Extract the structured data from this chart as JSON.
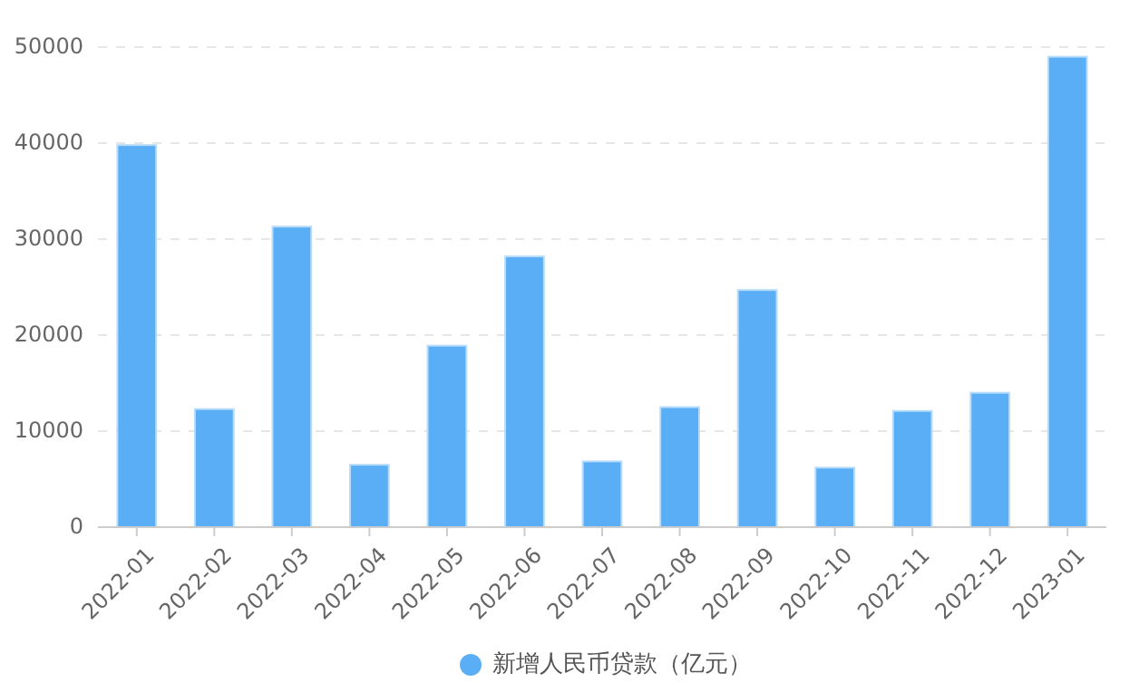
{
  "chart_data": {
    "type": "bar",
    "categories": [
      "2022-01",
      "2022-02",
      "2022-03",
      "2022-04",
      "2022-05",
      "2022-06",
      "2022-07",
      "2022-08",
      "2022-09",
      "2022-10",
      "2022-11",
      "2022-12",
      "2023-01"
    ],
    "series": [
      {
        "name": "新增人民币贷款（亿元）",
        "color": "#5aaef5",
        "values": [
          39800,
          12300,
          31300,
          6500,
          18900,
          28200,
          6850,
          12500,
          24700,
          6200,
          12100,
          14000,
          49000
        ]
      }
    ],
    "ylim": [
      0,
      50000
    ],
    "yticks": [
      0,
      10000,
      20000,
      30000,
      40000,
      50000
    ],
    "grid": "y",
    "legend": "bottom"
  }
}
